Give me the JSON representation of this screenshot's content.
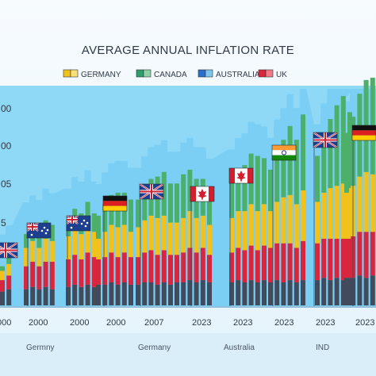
{
  "chart_data": {
    "type": "bar",
    "title": "AVERAGE ANNUAL INFLATION RATE",
    "legend": [
      {
        "label": "GERMANY",
        "colors": [
          "#f1c21b",
          "#f7e07a"
        ]
      },
      {
        "label": "CANADA",
        "colors": [
          "#2f9e6b",
          "#8fd1a6"
        ]
      },
      {
        "label": "AUSTRALIA",
        "colors": [
          "#2a6fc9",
          "#7fc6ef"
        ]
      },
      {
        "label": "UK",
        "colors": [
          "#d7263d",
          "#f07a8a"
        ]
      }
    ],
    "legend_position": "top",
    "y_tick_labels": [
      "00",
      "00",
      "05",
      "5"
    ],
    "x_tick_labels": [
      "000",
      "2000",
      "2000",
      "2000",
      "2007",
      "2023",
      "2023",
      "2023",
      "2023",
      "2023"
    ],
    "footer_labels": [
      "Germny",
      "Germany",
      "Australia",
      "IND"
    ],
    "grid": false,
    "colors": {
      "background": "#f4f8fc",
      "plot_background": "#8fd8f6",
      "skyline": "#6cc9f2",
      "footer_band": "#daeefa",
      "segments": [
        "#414b5c",
        "#d7263d",
        "#f1c21b",
        "#4caf6a"
      ]
    },
    "flags": [
      "uk",
      "australia",
      "australia",
      "germany",
      "uk",
      "canada",
      "canada",
      "india",
      "uk",
      "germany"
    ],
    "groups": [
      {
        "bars": [
          [
            6,
            5,
            4,
            2
          ],
          [
            7,
            6,
            5,
            3
          ]
        ]
      },
      {
        "bars": [
          [
            7,
            10,
            8,
            6
          ],
          [
            8,
            11,
            9,
            6
          ],
          [
            7,
            10,
            8,
            7
          ],
          [
            8,
            11,
            10,
            8
          ],
          [
            7,
            12,
            9,
            7
          ]
        ]
      },
      {
        "bars": [
          [
            8,
            12,
            10,
            7
          ],
          [
            9,
            13,
            12,
            8
          ],
          [
            8,
            12,
            11,
            9
          ],
          [
            9,
            14,
            13,
            9
          ],
          [
            8,
            13,
            11,
            8
          ]
        ]
      },
      {
        "bars": [
          [
            9,
            11,
            9,
            10
          ],
          [
            9,
            12,
            11,
            12
          ],
          [
            10,
            13,
            12,
            13
          ],
          [
            9,
            12,
            13,
            15
          ],
          [
            10,
            13,
            12,
            14
          ],
          [
            9,
            12,
            11,
            14
          ]
        ]
      },
      {
        "bars": [
          [
            9,
            12,
            13,
            12
          ],
          [
            10,
            13,
            14,
            14
          ],
          [
            10,
            14,
            15,
            16
          ],
          [
            9,
            13,
            16,
            18
          ],
          [
            10,
            14,
            15,
            19
          ],
          [
            9,
            13,
            14,
            17
          ]
        ]
      },
      {
        "bars": [
          [
            10,
            12,
            14,
            17
          ],
          [
            10,
            13,
            15,
            19
          ],
          [
            11,
            14,
            16,
            18
          ],
          [
            10,
            13,
            15,
            17
          ],
          [
            11,
            14,
            14,
            16
          ],
          [
            10,
            12,
            13,
            15
          ]
        ]
      },
      {
        "bars": [
          [
            10,
            13,
            15,
            16
          ],
          [
            11,
            14,
            16,
            18
          ],
          [
            10,
            14,
            17,
            20
          ],
          [
            11,
            15,
            18,
            22
          ],
          [
            10,
            14,
            17,
            24
          ],
          [
            11,
            15,
            18,
            20
          ]
        ]
      },
      {
        "bars": [
          [
            10,
            15,
            16,
            18
          ],
          [
            11,
            16,
            18,
            22
          ],
          [
            10,
            17,
            20,
            25
          ],
          [
            11,
            16,
            21,
            30
          ],
          [
            10,
            15,
            19,
            28
          ],
          [
            11,
            17,
            22,
            33
          ]
        ]
      },
      {
        "bars": [
          [
            11,
            16,
            18,
            20
          ],
          [
            12,
            17,
            20,
            25
          ],
          [
            11,
            18,
            22,
            30
          ],
          [
            12,
            17,
            23,
            35
          ],
          [
            11,
            18,
            24,
            38
          ],
          [
            12,
            17,
            22,
            33
          ]
        ]
      },
      {
        "bars": [
          [
            12,
            17,
            20,
            26
          ],
          [
            12,
            18,
            22,
            30
          ],
          [
            13,
            19,
            24,
            36
          ],
          [
            12,
            20,
            26,
            40
          ],
          [
            13,
            19,
            25,
            42
          ],
          [
            12,
            18,
            24,
            38
          ]
        ]
      }
    ]
  }
}
